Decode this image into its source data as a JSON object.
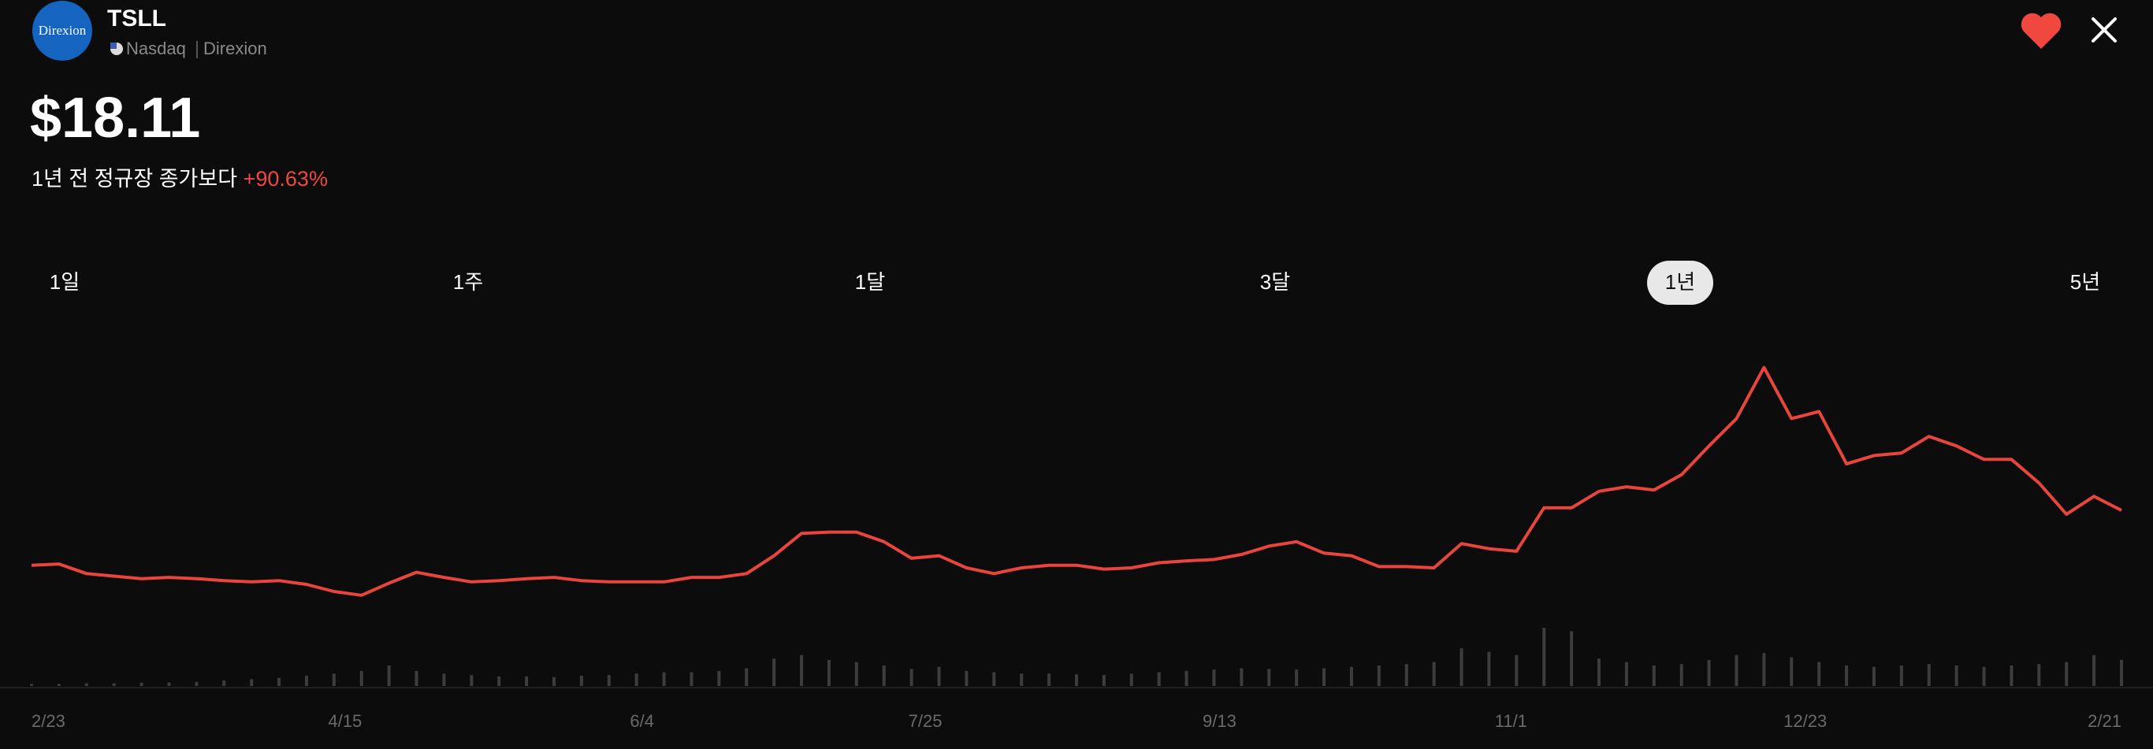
{
  "header": {
    "logo_text": "Direxion",
    "ticker": "TSLL",
    "exchange": "Nasdaq",
    "issuer": "Direxion"
  },
  "price": "$18.11",
  "change_text": "1년 전 정규장 종가보다",
  "change": "+90.63%",
  "periods": [
    "1일",
    "1주",
    "1달",
    "3달",
    "1년",
    "5년"
  ],
  "selected_period": 4,
  "chart_data": {
    "type": "line",
    "series": [
      {
        "color": "#e8453c",
        "values": [
          9.5,
          9.7,
          8.2,
          7.8,
          7.4,
          7.6,
          7.4,
          7.1,
          6.9,
          7.1,
          6.5,
          5.4,
          4.8,
          6.7,
          8.4,
          7.6,
          6.9,
          7.1,
          7.4,
          7.6,
          7.1,
          6.9,
          6.9,
          6.9,
          7.6,
          7.6,
          8.2,
          11.0,
          14.5,
          14.7,
          14.7,
          13.2,
          10.6,
          11.0,
          9.1,
          8.2,
          9.1,
          9.5,
          9.5,
          8.9,
          9.1,
          9.9,
          10.2,
          10.4,
          11.2,
          12.5,
          13.2,
          11.4,
          11.0,
          9.3,
          9.3,
          9.1,
          12.9,
          12.1,
          11.7,
          18.5,
          18.5,
          21.1,
          21.8,
          21.3,
          23.7,
          28.2,
          32.5,
          40.5,
          32.5,
          33.6,
          25.4,
          26.7,
          27.1,
          29.7,
          28.2,
          26.1,
          26.1,
          22.4,
          17.5,
          20.3,
          18.11
        ]
      },
      {
        "type": "bar",
        "axis": "y2",
        "color": "#3d3d3d",
        "values": [
          3,
          3,
          4,
          4,
          5,
          5,
          6,
          8,
          10,
          12,
          15,
          18,
          22,
          30,
          22,
          18,
          16,
          14,
          14,
          13,
          15,
          16,
          18,
          20,
          20,
          22,
          26,
          40,
          45,
          38,
          35,
          30,
          25,
          28,
          22,
          20,
          18,
          18,
          17,
          16,
          18,
          20,
          22,
          24,
          26,
          25,
          24,
          26,
          28,
          30,
          32,
          35,
          55,
          50,
          45,
          85,
          80,
          40,
          35,
          30,
          32,
          38,
          45,
          48,
          42,
          35,
          30,
          28,
          30,
          32,
          30,
          28,
          30,
          32,
          35,
          45,
          38
        ]
      }
    ],
    "ylim": [
      -3,
      46.5
    ],
    "y2lim": [
      0,
      100
    ],
    "xticks": [
      {
        "value": 0,
        "label": "2/23"
      },
      {
        "value": 11.4,
        "label": "4/15"
      },
      {
        "value": 22.2,
        "label": "6/4"
      },
      {
        "value": 32.5,
        "label": "7/25"
      },
      {
        "value": 43.2,
        "label": "9/13"
      },
      {
        "value": 53.8,
        "label": "11/1"
      },
      {
        "value": 64.5,
        "label": "12/23"
      },
      {
        "value": 76,
        "label": "2/21"
      }
    ]
  }
}
